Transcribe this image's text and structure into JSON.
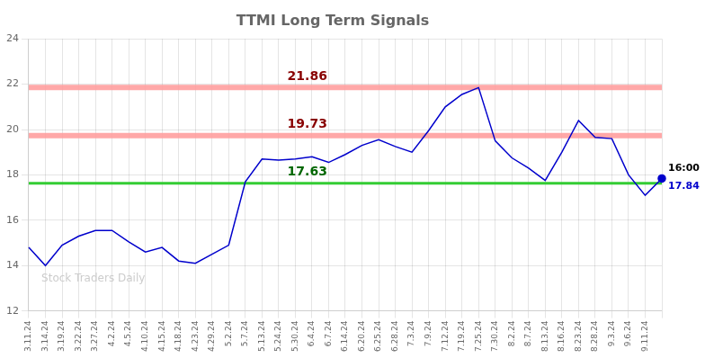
{
  "chart_data": {
    "type": "line",
    "title": "TTMI Long Term Signals",
    "categories": [
      "3.11.24",
      "3.14.24",
      "3.19.24",
      "3.22.24",
      "3.27.24",
      "4.2.24",
      "4.5.24",
      "4.10.24",
      "4.15.24",
      "4.18.24",
      "4.23.24",
      "4.29.24",
      "5.2.24",
      "5.7.24",
      "5.13.24",
      "5.24.24",
      "5.30.24",
      "6.4.24",
      "6.7.24",
      "6.14.24",
      "6.20.24",
      "6.25.24",
      "6.28.24",
      "7.3.24",
      "7.9.24",
      "7.12.24",
      "7.19.24",
      "7.25.24",
      "7.30.24",
      "8.2.24",
      "8.7.24",
      "8.13.24",
      "8.16.24",
      "8.23.24",
      "8.28.24",
      "9.3.24",
      "9.6.24",
      "9.11.24",
      null
    ],
    "values": [
      14.8,
      14.0,
      14.9,
      15.3,
      15.55,
      15.55,
      15.05,
      14.6,
      14.8,
      14.2,
      14.1,
      14.5,
      14.9,
      17.7,
      18.7,
      18.65,
      18.7,
      18.8,
      18.55,
      18.9,
      19.3,
      19.55,
      19.25,
      19.0,
      19.95,
      21.0,
      21.55,
      21.85,
      19.5,
      18.75,
      18.3,
      17.75,
      19.0,
      20.4,
      19.65,
      19.6,
      18.0,
      17.1,
      17.84
    ],
    "color": "#0000cc",
    "ylim": [
      12,
      24
    ],
    "yticks": [
      12,
      14,
      16,
      18,
      20,
      22,
      24
    ],
    "grid": true,
    "reference_lines": [
      {
        "value": 21.86,
        "color": "#ff9999",
        "label": "21.86",
        "label_color": "#880000"
      },
      {
        "value": 19.73,
        "color": "#ff9999",
        "label": "19.73",
        "label_color": "#880000"
      },
      {
        "value": 17.63,
        "color": "#33cc33",
        "label": "17.63",
        "label_color": "#006600"
      }
    ],
    "end_label": {
      "time": "16:00",
      "value": 17.84,
      "label": "17.84"
    },
    "watermark": "Stock Traders Daily",
    "watermark_color": "#cccccc"
  }
}
